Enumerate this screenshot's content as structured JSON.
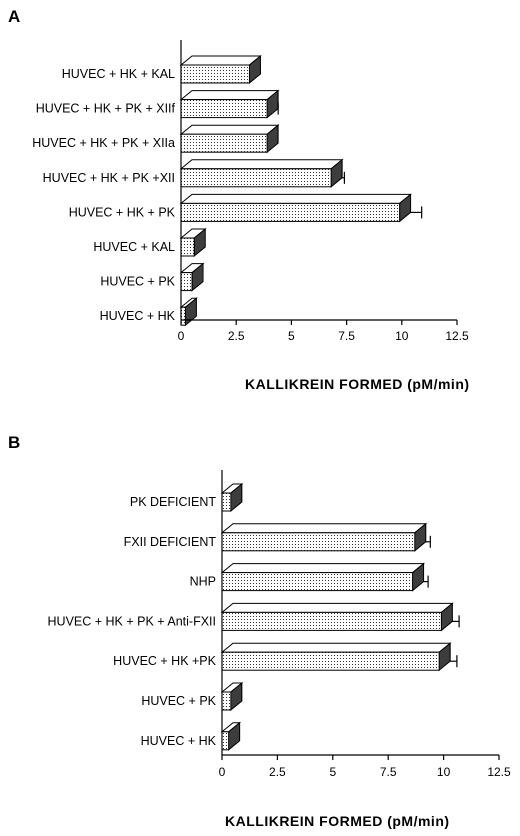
{
  "chart_data": [
    {
      "type": "bar",
      "orientation": "horizontal",
      "panel_label": "A",
      "categories": [
        "HUVEC + HK + KAL",
        "HUVEC + HK + PK + XIIf",
        "HUVEC + HK + PK + XIIa",
        "HUVEC + HK + PK  +XII",
        "HUVEC + HK + PK",
        "HUVEC + KAL",
        "HUVEC + PK",
        "HUVEC + HK"
      ],
      "values": [
        3.1,
        3.9,
        3.9,
        6.8,
        9.9,
        0.6,
        0.5,
        0.2
      ],
      "errors": [
        0,
        0.5,
        0,
        0.6,
        1.0,
        0,
        0,
        0
      ],
      "xlabel": "KALLIKREIN  FORMED  (pM/min)",
      "xlim": [
        0,
        12.5
      ],
      "xticks": [
        "0",
        "2.5",
        "5",
        "7.5",
        "10",
        "12.5"
      ],
      "grid": false
    },
    {
      "type": "bar",
      "orientation": "horizontal",
      "panel_label": "B",
      "categories": [
        "PK DEFICIENT",
        "FXII DEFICIENT",
        "NHP",
        "HUVEC + HK + PK + Anti-FXII",
        "HUVEC + HK +PK",
        "HUVEC + PK",
        "HUVEC + HK"
      ],
      "values": [
        0.4,
        8.7,
        8.6,
        9.9,
        9.8,
        0.4,
        0.3
      ],
      "errors": [
        0,
        0.7,
        0.7,
        0.8,
        0.8,
        0,
        0
      ],
      "xlabel": "KALLIKREIN  FORMED  (pM/min)",
      "xlim": [
        0,
        12.5
      ],
      "xticks": [
        "0",
        "2.5",
        "5",
        "7.5",
        "10",
        "12.5"
      ],
      "grid": false
    }
  ]
}
